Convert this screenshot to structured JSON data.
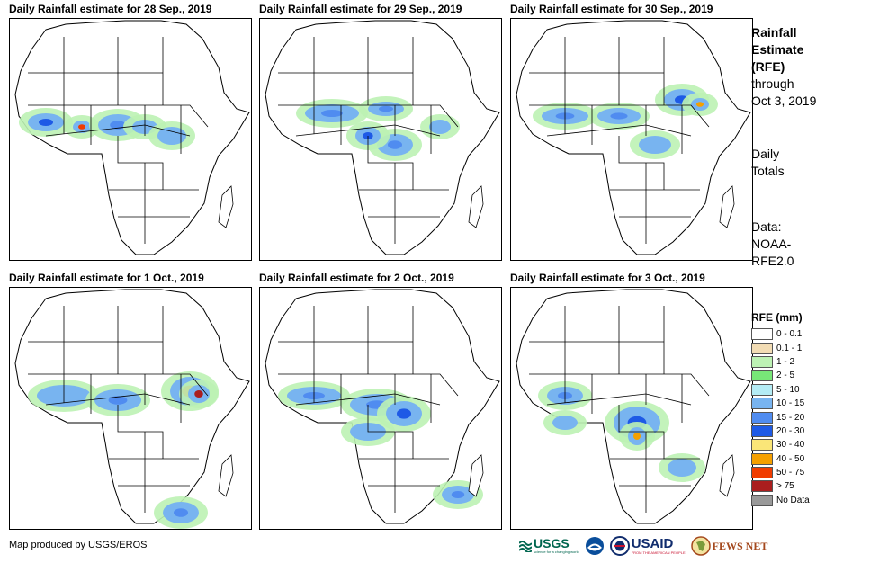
{
  "panels": [
    {
      "title": "Daily Rainfall estimate for 28 Sep., 2019"
    },
    {
      "title": "Daily Rainfall estimate for 29 Sep., 2019"
    },
    {
      "title": "Daily Rainfall estimate for 30 Sep., 2019"
    },
    {
      "title": "Daily Rainfall estimate for 1 Oct., 2019"
    },
    {
      "title": "Daily Rainfall estimate for 2 Oct., 2019"
    },
    {
      "title": "Daily Rainfall estimate for 3 Oct., 2019"
    }
  ],
  "sidebar": {
    "title_line1": "Rainfall",
    "title_line2": "Estimate",
    "title_line3": "(RFE)",
    "through": "through",
    "date": "Oct 3, 2019",
    "daily1": "Daily",
    "daily2": "Totals",
    "data1": "Data:",
    "data2": "NOAA-",
    "data3": "RFE2.0"
  },
  "legend": {
    "title": "RFE (mm)",
    "items": [
      {
        "label": "0 - 0.1",
        "color": "#ffffff"
      },
      {
        "label": "0.1 - 1",
        "color": "#f2dcb4"
      },
      {
        "label": "1 - 2",
        "color": "#bdf2b4"
      },
      {
        "label": "2 - 5",
        "color": "#78e678"
      },
      {
        "label": "5 - 10",
        "color": "#b4ecf5"
      },
      {
        "label": "10 - 15",
        "color": "#78b4f0"
      },
      {
        "label": "15 - 20",
        "color": "#508cf0"
      },
      {
        "label": "20 - 30",
        "color": "#1e5ae6"
      },
      {
        "label": "30 - 40",
        "color": "#fae678"
      },
      {
        "label": "40 - 50",
        "color": "#f5a000"
      },
      {
        "label": "50 - 75",
        "color": "#f03c00"
      },
      {
        "label": "> 75",
        "color": "#aa1e1e"
      },
      {
        "label": "No Data",
        "color": "#999999"
      }
    ]
  },
  "credit": "Map produced by USGS/EROS",
  "logos": {
    "usgs": "USGS",
    "usgs_tagline": "science for a changing world",
    "noaa": "NOAA",
    "usaid": "USAID",
    "usaid_tagline": "FROM THE AMERICAN PEOPLE",
    "fews": "FEWS NET"
  }
}
